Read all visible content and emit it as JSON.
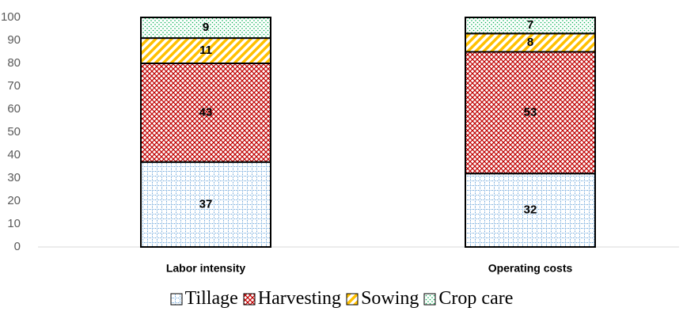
{
  "chart_data": {
    "type": "stacked_bar",
    "categories": [
      "Labor intensity",
      "Operating costs"
    ],
    "series": [
      {
        "name": "Tillage",
        "color": "#5b9bd5",
        "values": [
          37,
          32
        ]
      },
      {
        "name": "Harvesting",
        "color": "#c00000",
        "values": [
          43,
          53
        ]
      },
      {
        "name": "Sowing",
        "color": "#ffc000",
        "values": [
          11,
          8
        ]
      },
      {
        "name": "Crop care",
        "color": "#00b050",
        "values": [
          9,
          7
        ]
      }
    ],
    "ylim": [
      0,
      100
    ],
    "yticks": [
      0,
      10,
      20,
      30,
      40,
      50,
      60,
      70,
      80,
      90,
      100
    ],
    "grid": false
  }
}
